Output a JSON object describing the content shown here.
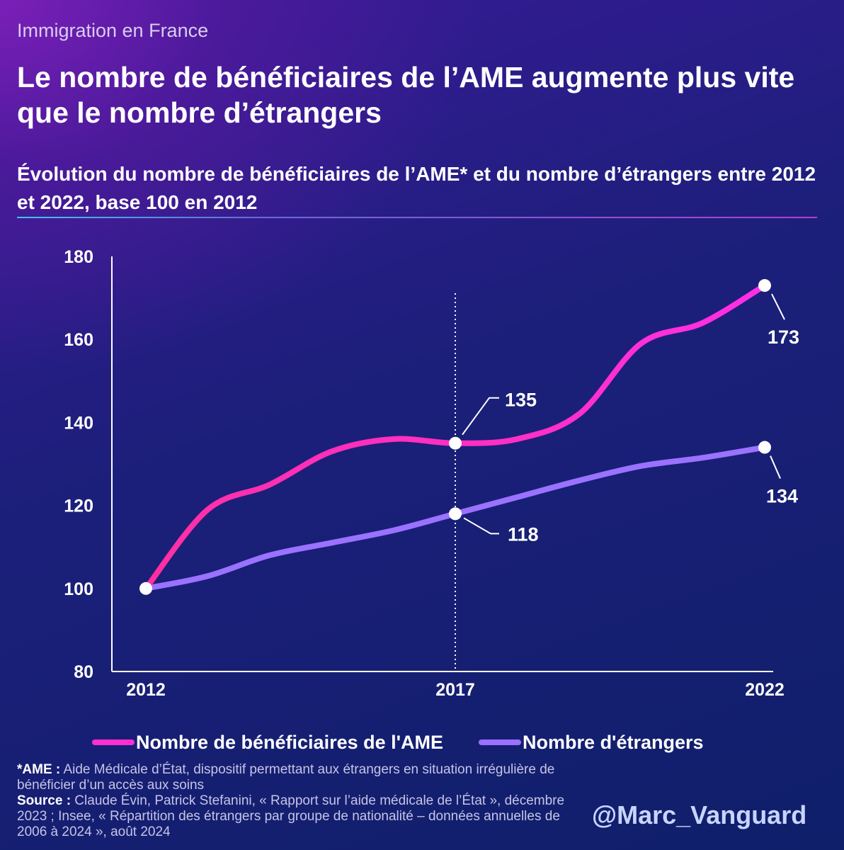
{
  "header": {
    "kicker": "Immigration en France",
    "title": "Le nombre de bénéficiaires de l’AME augmente plus vite que le nombre d’étrangers",
    "subtitle": "Évolution du nombre de bénéficiaires de l’AME* et du nombre d’étrangers entre 2012 et 2022, base 100 en 2012"
  },
  "chart_data": {
    "type": "line",
    "x": [
      2012,
      2013,
      2014,
      2015,
      2016,
      2017,
      2018,
      2019,
      2020,
      2021,
      2022
    ],
    "xticks": [
      "2012",
      "2017",
      "2022"
    ],
    "yticks": [
      "80",
      "100",
      "120",
      "140",
      "160",
      "180"
    ],
    "ylim": [
      80,
      180
    ],
    "grid": false,
    "series": [
      {
        "name": "Nombre de bénéficiaires de l'AME",
        "color": "#ff2fd2",
        "values": [
          100,
          119,
          125,
          133,
          136,
          135,
          136,
          142,
          159,
          164,
          173
        ]
      },
      {
        "name": "Nombre d'étrangers",
        "color": "#9a72ff",
        "values": [
          100,
          103,
          108,
          111,
          114,
          118,
          122,
          126,
          129.5,
          131.5,
          134
        ]
      }
    ],
    "annotations": [
      {
        "series": 0,
        "x": 2017,
        "label": "135"
      },
      {
        "series": 0,
        "x": 2022,
        "label": "173"
      },
      {
        "series": 1,
        "x": 2017,
        "label": "118"
      },
      {
        "series": 1,
        "x": 2022,
        "label": "134"
      }
    ],
    "reference_line_x": 2017
  },
  "footer": {
    "ame_key": "*AME :",
    "ame_text": " Aide Médicale d’État, dispositif permettant aux étrangers en situation irrégulière de bénéficier d’un accès aux soins",
    "source_key": "Source :",
    "source_text": " Claude Évin, Patrick Stefanini, « Rapport sur l’aide médicale de l’État », décembre 2023 ; Insee, « Répartition des étrangers par groupe de nationalité – données annuelles de 2006 à 2024 », août 2024",
    "handle": "@Marc_Vanguard"
  }
}
